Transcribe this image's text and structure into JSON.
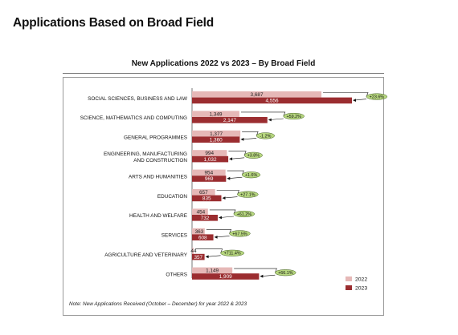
{
  "page": {
    "title": "Applications Based on Broad Field"
  },
  "chart_data": {
    "type": "bar",
    "orientation": "horizontal",
    "title": "New Applications 2022 vs 2023 – By Broad Field",
    "categories": [
      "SOCIAL SCIENCES, BUSINESS AND LAW",
      "SCIENCE, MATHEMATICS AND COMPUTING",
      "GENERAL PROGRAMMES",
      "ENGINEERING, MANUFACTURING AND CONSTRUCTION",
      "ARTS AND HUMANITIES",
      "EDUCATION",
      "HEALTH AND WELFARE",
      "SERVICES",
      "AGRICULTURE AND VETERINARY",
      "OTHERS"
    ],
    "category_lines": [
      [
        "SOCIAL SCIENCES, BUSINESS AND LAW"
      ],
      [
        "SCIENCE, MATHEMATICS AND COMPUTING"
      ],
      [
        "GENERAL PROGRAMMES"
      ],
      [
        "ENGINEERING, MANUFACTURING",
        "AND CONSTRUCTION"
      ],
      [
        "ARTS AND HUMANITIES"
      ],
      [
        "EDUCATION"
      ],
      [
        "HEALTH AND WELFARE"
      ],
      [
        "SERVICES"
      ],
      [
        "AGRICULTURE AND VETERINARY"
      ],
      [
        "OTHERS"
      ]
    ],
    "series": [
      {
        "name": "2022",
        "color": "#e6b8b7",
        "values": [
          3687,
          1349,
          1377,
          994,
          954,
          657,
          454,
          363,
          44,
          1149
        ],
        "labels": [
          "3,687",
          "1,349",
          "1,377",
          "994",
          "954",
          "657",
          "454",
          "363",
          "44",
          "1,149"
        ]
      },
      {
        "name": "2023",
        "color": "#9b2d30",
        "values": [
          4556,
          2147,
          1360,
          1032,
          969,
          835,
          732,
          608,
          357,
          1909
        ],
        "labels": [
          "4,556",
          "2,147",
          "1,360",
          "1,032",
          "969",
          "835",
          "732",
          "608",
          "357",
          "1,909"
        ]
      }
    ],
    "change_labels": [
      "+23.6%",
      "+59.2%",
      "-1.2%",
      "+3.8%",
      "+1.6%",
      "+27.1%",
      "+61.2%",
      "+67.5%",
      "+711.4%",
      "+66.1%"
    ],
    "change_badge_color": "#b7d77f",
    "legend_position": "bottom-right",
    "grid": false,
    "note": "Note: New Applications Received (October – December) for year 2022 & 2023"
  }
}
